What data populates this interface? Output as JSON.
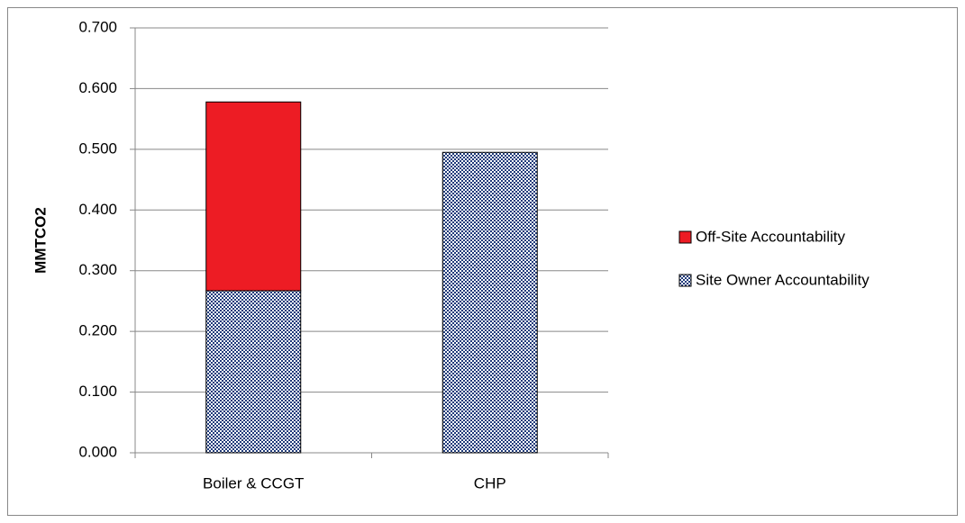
{
  "chart_data": {
    "type": "stacked_bar",
    "y_label": "MMTCO2",
    "categories": [
      "Boiler & CCGT",
      "CHP"
    ],
    "series": [
      {
        "name": "Site Owner Accountability",
        "color": "#1f3a7a",
        "pattern": "dots",
        "values": [
          0.267,
          0.495
        ]
      },
      {
        "name": "Off-Site Accountability",
        "color": "#ed1c24",
        "values": [
          0.311,
          0
        ]
      }
    ],
    "ylim": [
      0,
      0.7
    ],
    "yticks": [
      {
        "value": 0,
        "label": "0.000"
      },
      {
        "value": 0.1,
        "label": "0.100"
      },
      {
        "value": 0.2,
        "label": "0.200"
      },
      {
        "value": 0.3,
        "label": "0.300"
      },
      {
        "value": 0.4,
        "label": "0.400"
      },
      {
        "value": 0.5,
        "label": "0.500"
      },
      {
        "value": 0.6,
        "label": "0.600"
      },
      {
        "value": 0.7,
        "label": "0.700"
      }
    ],
    "grid": true,
    "legend": "right"
  }
}
